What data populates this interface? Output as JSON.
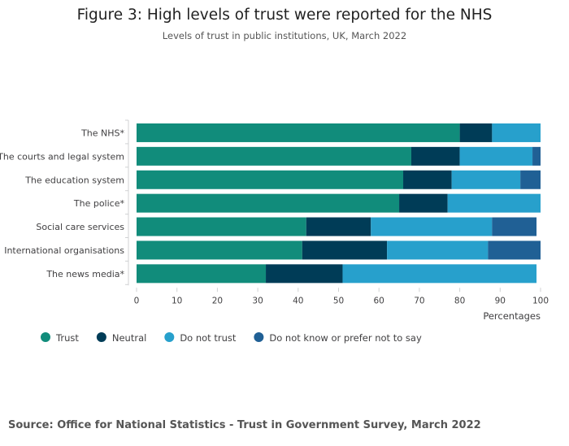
{
  "chart_data": {
    "type": "bar",
    "orientation": "horizontal",
    "stacked": true,
    "title": "Figure 3: High levels of trust were reported for the NHS",
    "subtitle": "Levels of trust in public institutions, UK, March 2022",
    "categories": [
      "The NHS*",
      "The courts and legal system",
      "The education system",
      "The police*",
      "Social care services",
      "International organisations",
      "The news media*"
    ],
    "series": [
      {
        "name": "Trust",
        "color": "#118c7b",
        "values": [
          80,
          68,
          66,
          65,
          42,
          41,
          32
        ]
      },
      {
        "name": "Neutral",
        "color": "#003c57",
        "values": [
          8,
          12,
          12,
          12,
          16,
          21,
          19
        ]
      },
      {
        "name": "Do not trust",
        "color": "#27a0cc",
        "values": [
          12,
          18,
          17,
          23,
          30,
          25,
          48
        ]
      },
      {
        "name": "Do not know or prefer not to say",
        "color": "#206095",
        "values": [
          0,
          2,
          5,
          0,
          11,
          13,
          0
        ]
      }
    ],
    "xlim": [
      0,
      100
    ],
    "xticks": [
      "0",
      "10",
      "20",
      "30",
      "40",
      "50",
      "60",
      "70",
      "80",
      "90",
      "100"
    ],
    "xlabel": "Percentages",
    "ylabel": "",
    "legend_position": "bottom-left",
    "source": "Source: Office for National Statistics - Trust in Government Survey, March 2022"
  }
}
